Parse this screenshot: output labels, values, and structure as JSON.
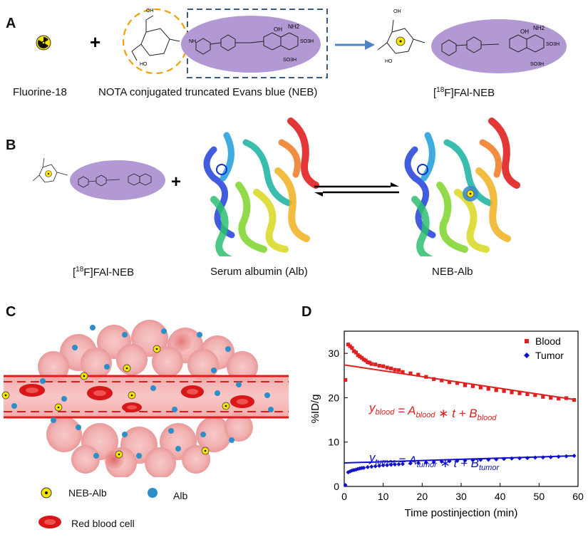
{
  "panels": {
    "a": {
      "letter": "A",
      "caption_left": "Fluorine-18",
      "caption_mid": "NOTA conjugated truncated Evans blue (NEB)",
      "caption_right_sup": "18",
      "caption_right_pre": "[",
      "caption_right_post": "F]FAl-NEB",
      "plus": "+",
      "chem": {
        "oh": "OH",
        "nh2": "NH2",
        "so3h": "SO3H",
        "nh": "NH",
        "n": "N",
        "o": "O",
        "ho": "HO"
      }
    },
    "b": {
      "letter": "B",
      "caption_left_pre": "[",
      "caption_left_sup": "18",
      "caption_left_post": "F]FAl-NEB",
      "caption_mid": "Serum albumin (Alb)",
      "caption_right": "NEB-Alb",
      "plus": "+"
    },
    "c": {
      "letter": "C",
      "legend_neb_alb": "NEB-Alb",
      "legend_alb": "Alb",
      "legend_rbc": "Red blood cell"
    },
    "d": {
      "letter": "D"
    }
  },
  "colors": {
    "purple": "#b399d4",
    "blue_dash": "#3a5a80",
    "orange_dash": "#f2a000",
    "arrow_blue": "#4d86c6",
    "vessel_red": "#e01d1d",
    "blood_red": "#e0201e",
    "tumor_blue": "#1010c8",
    "alb_blue": "#2d8fc9"
  },
  "chart_data": {
    "type": "scatter",
    "title": "",
    "xlabel": "Time postinjection (min)",
    "ylabel": "%ID/g",
    "xlim": [
      0,
      60
    ],
    "ylim": [
      0,
      35
    ],
    "xticks": [
      0,
      10,
      20,
      30,
      40,
      50,
      60
    ],
    "yticks": [
      0,
      10,
      20,
      30
    ],
    "legend_position": "top-right",
    "series": [
      {
        "name": "Blood",
        "marker": "square",
        "color": "#e0201e",
        "x": [
          0.3,
          1,
          1.5,
          2,
          2.5,
          3,
          3.5,
          4,
          4.5,
          5,
          5.5,
          6,
          6.5,
          7,
          8,
          9,
          10,
          11,
          12,
          13,
          14,
          15,
          17,
          19,
          21,
          23,
          25,
          27,
          29,
          31,
          33,
          35,
          37,
          39,
          41,
          43,
          45,
          47,
          49,
          51,
          53,
          55,
          57,
          59
        ],
        "y": [
          24,
          32,
          31.6,
          31.2,
          30.5,
          30.2,
          29.6,
          29.3,
          29,
          28.6,
          28.4,
          28,
          27.9,
          27.6,
          27.5,
          27.2,
          27.1,
          26.8,
          26.6,
          26.3,
          26.2,
          25.8,
          25.5,
          25.2,
          24.7,
          24.2,
          23.9,
          23.5,
          23.3,
          22.8,
          22.6,
          22.3,
          22,
          21.7,
          21.5,
          21.2,
          21,
          20.8,
          20.6,
          20.2,
          20,
          19.8,
          19.9,
          19.5
        ]
      },
      {
        "name": "Tumor",
        "marker": "diamond",
        "color": "#1010c8",
        "x": [
          0.3,
          1,
          1.5,
          2,
          2.5,
          3,
          3.5,
          4,
          4.5,
          5,
          6,
          7,
          8,
          9,
          10,
          11,
          12,
          13,
          14,
          15,
          17,
          19,
          21,
          23,
          25,
          27,
          29,
          31,
          33,
          35,
          37,
          39,
          41,
          43,
          45,
          47,
          49,
          51,
          53,
          55,
          57,
          59
        ],
        "y": [
          0.3,
          3.2,
          3.4,
          3.6,
          3.7,
          3.8,
          3.95,
          4.05,
          4.15,
          4.2,
          4.35,
          4.45,
          4.55,
          4.65,
          4.75,
          4.8,
          4.9,
          4.95,
          5,
          5.05,
          5.2,
          5.3,
          5.4,
          5.5,
          5.6,
          5.7,
          5.75,
          5.85,
          5.9,
          6,
          6.05,
          6.1,
          6.2,
          6.3,
          6.35,
          6.4,
          6.5,
          6.55,
          6.6,
          6.7,
          6.8,
          6.9
        ]
      }
    ],
    "fits": [
      {
        "name": "Blood fit",
        "color": "#e0201e",
        "x": [
          0,
          59
        ],
        "y": [
          27.4,
          19.6
        ]
      },
      {
        "name": "Tumor fit",
        "color": "#1010c8",
        "x": [
          0,
          59
        ],
        "y": [
          5.3,
          6.9
        ]
      }
    ],
    "annotations": [
      {
        "series": "Blood",
        "y": "y",
        "sub": "blood",
        "eq": " = ",
        "A": "A",
        "t": " ∗ t + ",
        "B": "B"
      },
      {
        "series": "Tumor",
        "y": "y",
        "sub": "tumor",
        "eq": " = ",
        "A": "A",
        "t": " ∗ t + ",
        "B": "B"
      }
    ]
  }
}
